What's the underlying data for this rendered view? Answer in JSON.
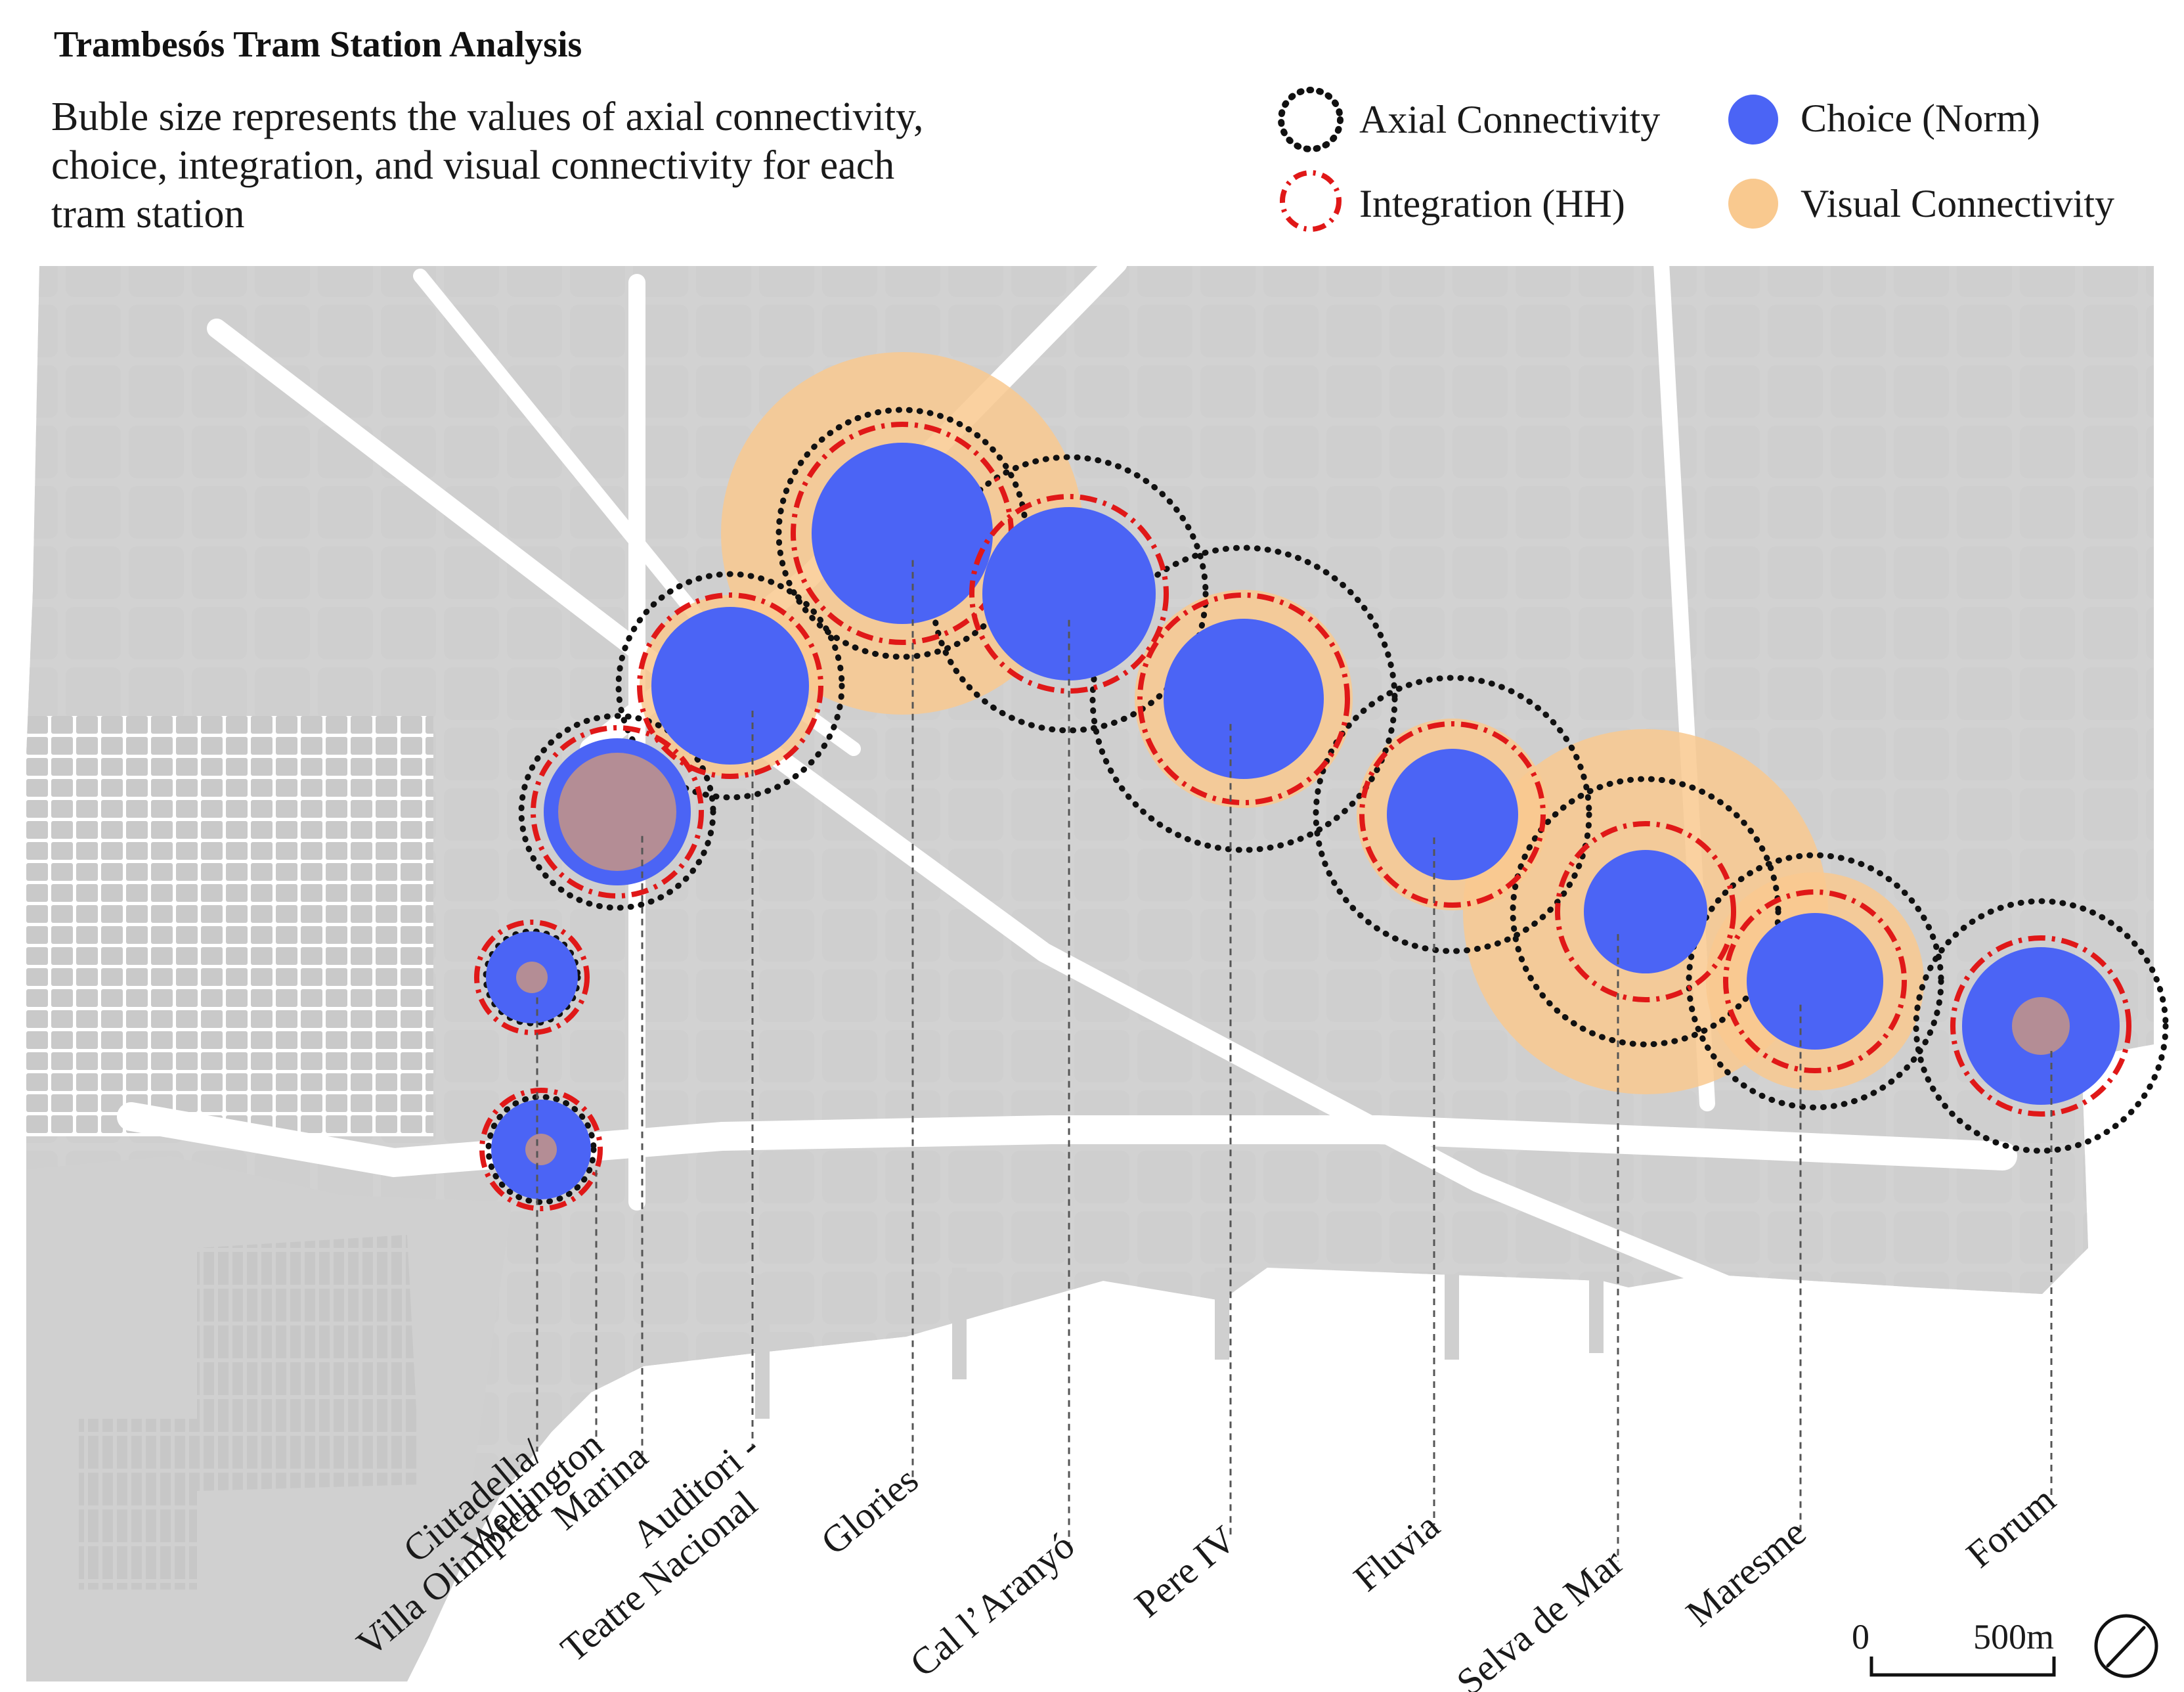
{
  "title": "Trambesós Tram Station Analysis",
  "description": {
    "line1": "Buble size represents the values of axial connectivity,",
    "line2": "choice, integration, and visual connectivity for each",
    "line3": "tram station"
  },
  "legend": {
    "axial": "Axial Connectivity",
    "integration": "Integration (HH)",
    "choice": "Choice (Norm)",
    "visual": "Visual Connectivity"
  },
  "colors": {
    "axial": "#111111",
    "integration": "#e01818",
    "choice": "#4b64f5",
    "visual": "#f9c98f",
    "inner": "#b48d95",
    "map_block": "#cfcfcf",
    "map_street": "#ffffff"
  },
  "stations": [
    {
      "id": "ciutadella",
      "name_lines": [
        "Ciutadella/",
        "Villa Olimpica"
      ],
      "relative_size": {
        "visual": 0.0,
        "axial": 0.35,
        "integration": 0.42,
        "choice": 0.35,
        "inner": 0.12
      }
    },
    {
      "id": "wellington",
      "name_lines": [
        "Wellington"
      ],
      "relative_size": {
        "visual": 0.0,
        "axial": 0.4,
        "integration": 0.45,
        "choice": 0.38,
        "inner": 0.12
      }
    },
    {
      "id": "marina",
      "name_lines": [
        "Marina"
      ],
      "relative_size": {
        "visual": 0.0,
        "axial": 0.73,
        "integration": 0.64,
        "choice": 0.56,
        "inner": 0.45
      }
    },
    {
      "id": "auditori",
      "name_lines": [
        "Auditori -",
        "Teatre Nacional"
      ],
      "relative_size": {
        "visual": 0.69,
        "axial": 0.85,
        "integration": 0.69,
        "choice": 0.6,
        "inner": 0.0
      }
    },
    {
      "id": "glories",
      "name_lines": [
        "Glories"
      ],
      "relative_size": {
        "visual": 1.38,
        "axial": 0.94,
        "integration": 0.83,
        "choice": 0.69,
        "inner": 0.0
      }
    },
    {
      "id": "calaranyo",
      "name_lines": [
        "Cal l’Aranyó"
      ],
      "relative_size": {
        "visual": 0.0,
        "axial": 1.04,
        "integration": 0.74,
        "choice": 0.66,
        "inner": 0.0
      }
    },
    {
      "id": "pereiv",
      "name_lines": [
        "Pere IV"
      ],
      "relative_size": {
        "visual": 0.83,
        "axial": 1.15,
        "integration": 0.79,
        "choice": 0.61,
        "inner": 0.0
      }
    },
    {
      "id": "fluvia",
      "name_lines": [
        "Fluvia"
      ],
      "relative_size": {
        "visual": 0.73,
        "axial": 1.04,
        "integration": 0.69,
        "choice": 0.5,
        "inner": 0.0
      }
    },
    {
      "id": "selvademar",
      "name_lines": [
        "Selva de Mar"
      ],
      "relative_size": {
        "visual": 1.39,
        "axial": 1.01,
        "integration": 0.67,
        "choice": 0.47,
        "inner": 0.0
      }
    },
    {
      "id": "maresme",
      "name_lines": [
        "Maresme"
      ],
      "relative_size": {
        "visual": 0.83,
        "axial": 0.96,
        "integration": 0.68,
        "choice": 0.52,
        "inner": 0.0
      }
    },
    {
      "id": "forum",
      "name_lines": [
        "Forum"
      ],
      "relative_size": {
        "visual": 0.0,
        "axial": 0.95,
        "integration": 0.67,
        "choice": 0.6,
        "inner": 0.22
      }
    }
  ],
  "scale_bar": {
    "start_label": "0",
    "end_label": "500m"
  }
}
